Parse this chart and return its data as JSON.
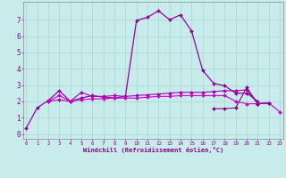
{
  "xlabel": "Windchill (Refroidissement éolien,°C)",
  "ylabel": "",
  "background_color": "#c8ecec",
  "grid_color": "#aad4d4",
  "x_ticks": [
    0,
    1,
    2,
    3,
    4,
    5,
    6,
    7,
    8,
    9,
    10,
    11,
    12,
    13,
    14,
    15,
    16,
    17,
    18,
    19,
    20,
    21,
    22,
    23
  ],
  "y_ticks": [
    0,
    1,
    2,
    3,
    4,
    5,
    6,
    7
  ],
  "xlim": [
    -0.3,
    23.3
  ],
  "ylim": [
    -0.3,
    8.1
  ],
  "series": [
    {
      "x": [
        0,
        1,
        2,
        3,
        4,
        5,
        6,
        7,
        8,
        9,
        10,
        11,
        12,
        13,
        14,
        15,
        16,
        17,
        18,
        19,
        20,
        21
      ],
      "y": [
        0.35,
        1.6,
        2.05,
        2.65,
        2.0,
        2.2,
        2.35,
        2.25,
        2.2,
        2.3,
        6.95,
        7.15,
        7.55,
        7.0,
        7.3,
        6.3,
        3.9,
        3.1,
        2.95,
        2.5,
        2.5,
        2.0
      ],
      "color": "#990099",
      "marker": "D",
      "markersize": 2.0,
      "lw": 0.9
    },
    {
      "x": [
        2,
        3,
        4,
        5,
        6,
        7,
        8,
        9,
        10,
        11,
        12,
        13,
        14,
        15,
        16,
        17,
        18,
        19,
        20,
        21,
        22
      ],
      "y": [
        2.0,
        2.1,
        2.0,
        2.55,
        2.3,
        2.3,
        2.35,
        2.3,
        2.35,
        2.4,
        2.45,
        2.5,
        2.55,
        2.55,
        2.55,
        2.6,
        2.65,
        2.65,
        2.7,
        1.85,
        1.9
      ],
      "color": "#aa00aa",
      "marker": "D",
      "markersize": 2.0,
      "lw": 0.8
    },
    {
      "x": [
        2,
        3,
        4,
        5,
        6,
        7,
        8,
        9,
        10,
        11,
        12,
        13,
        14,
        15,
        16,
        17,
        18,
        19,
        20,
        21,
        22,
        23
      ],
      "y": [
        2.0,
        2.35,
        2.0,
        2.1,
        2.15,
        2.15,
        2.2,
        2.2,
        2.2,
        2.25,
        2.3,
        2.3,
        2.35,
        2.35,
        2.35,
        2.35,
        2.35,
        2.0,
        1.85,
        1.85,
        1.9,
        1.35
      ],
      "color": "#cc00cc",
      "marker": "D",
      "markersize": 2.0,
      "lw": 0.8
    },
    {
      "x": [
        17,
        18,
        19,
        20,
        21,
        22
      ],
      "y": [
        1.55,
        1.55,
        1.6,
        2.85,
        1.85,
        1.9
      ],
      "color": "#880088",
      "marker": "D",
      "markersize": 2.0,
      "lw": 0.8
    }
  ]
}
